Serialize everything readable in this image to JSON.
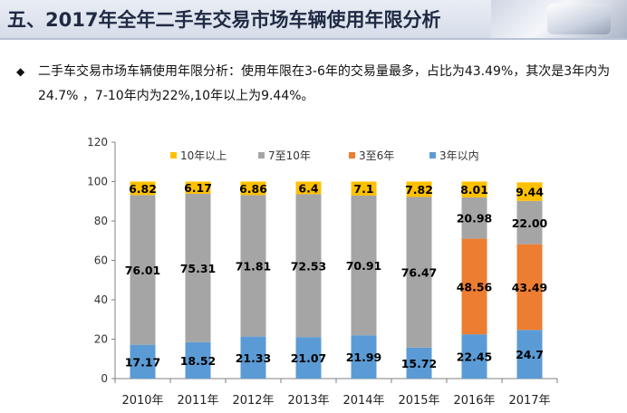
{
  "header": {
    "title": "五、2017年全年二手车交易市场车辆使用年限分析"
  },
  "bullet": {
    "text": "二手车交易市场车辆使用年限分析：使用年限在3-6年的交易量最多，占比为43.49%，其次是3年内为24.7% ，7-10年内为22%,10年以上为9.44%。"
  },
  "colors": {
    "series_3yr": "#5b9bd5",
    "series_3to6": "#ed7d31",
    "series_7to10": "#a5a5a5",
    "series_10plus": "#ffc000"
  },
  "chart_data": {
    "type": "bar",
    "stacked": true,
    "categories": [
      "2010年",
      "2011年",
      "2012年",
      "2013年",
      "2014年",
      "2015年",
      "2016年",
      "2017年"
    ],
    "series": [
      {
        "name": "3年以内",
        "values": [
          17.17,
          18.52,
          21.33,
          21.07,
          21.99,
          15.72,
          22.45,
          24.7
        ],
        "labels": [
          "17.17",
          "18.52",
          "21.33",
          "21.07",
          "21.99",
          "15.72",
          "22.45",
          "24.7"
        ],
        "color": "#5b9bd5"
      },
      {
        "name": "3至6年",
        "values": [
          null,
          null,
          null,
          null,
          null,
          null,
          48.56,
          43.49
        ],
        "labels": [
          "",
          "",
          "",
          "",
          "",
          "",
          "48.56",
          "43.49"
        ],
        "color": "#ed7d31"
      },
      {
        "name": "7至10年",
        "values": [
          76.01,
          75.31,
          71.81,
          72.53,
          70.91,
          76.47,
          20.98,
          22.0
        ],
        "labels": [
          "76.01",
          "75.31",
          "71.81",
          "72.53",
          "70.91",
          "76.47",
          "20.98",
          "22.00"
        ],
        "color": "#a5a5a5"
      },
      {
        "name": "10年以上",
        "values": [
          6.82,
          6.17,
          6.86,
          6.4,
          7.1,
          7.82,
          8.01,
          9.44
        ],
        "labels": [
          "6.82",
          "6.17",
          "6.86",
          "6.4",
          "7.1",
          "7.82",
          "8.01",
          "9.44"
        ],
        "color": "#ffc000"
      }
    ],
    "legend_order": [
      "10年以上",
      "7至10年",
      "3至6年",
      "3年以内"
    ],
    "legend_position": "top",
    "ylim": [
      0,
      120
    ],
    "yticks": [
      "0",
      "20",
      "40",
      "60",
      "80",
      "100",
      "120"
    ],
    "grid": false,
    "title": "",
    "xlabel": "",
    "ylabel": ""
  }
}
